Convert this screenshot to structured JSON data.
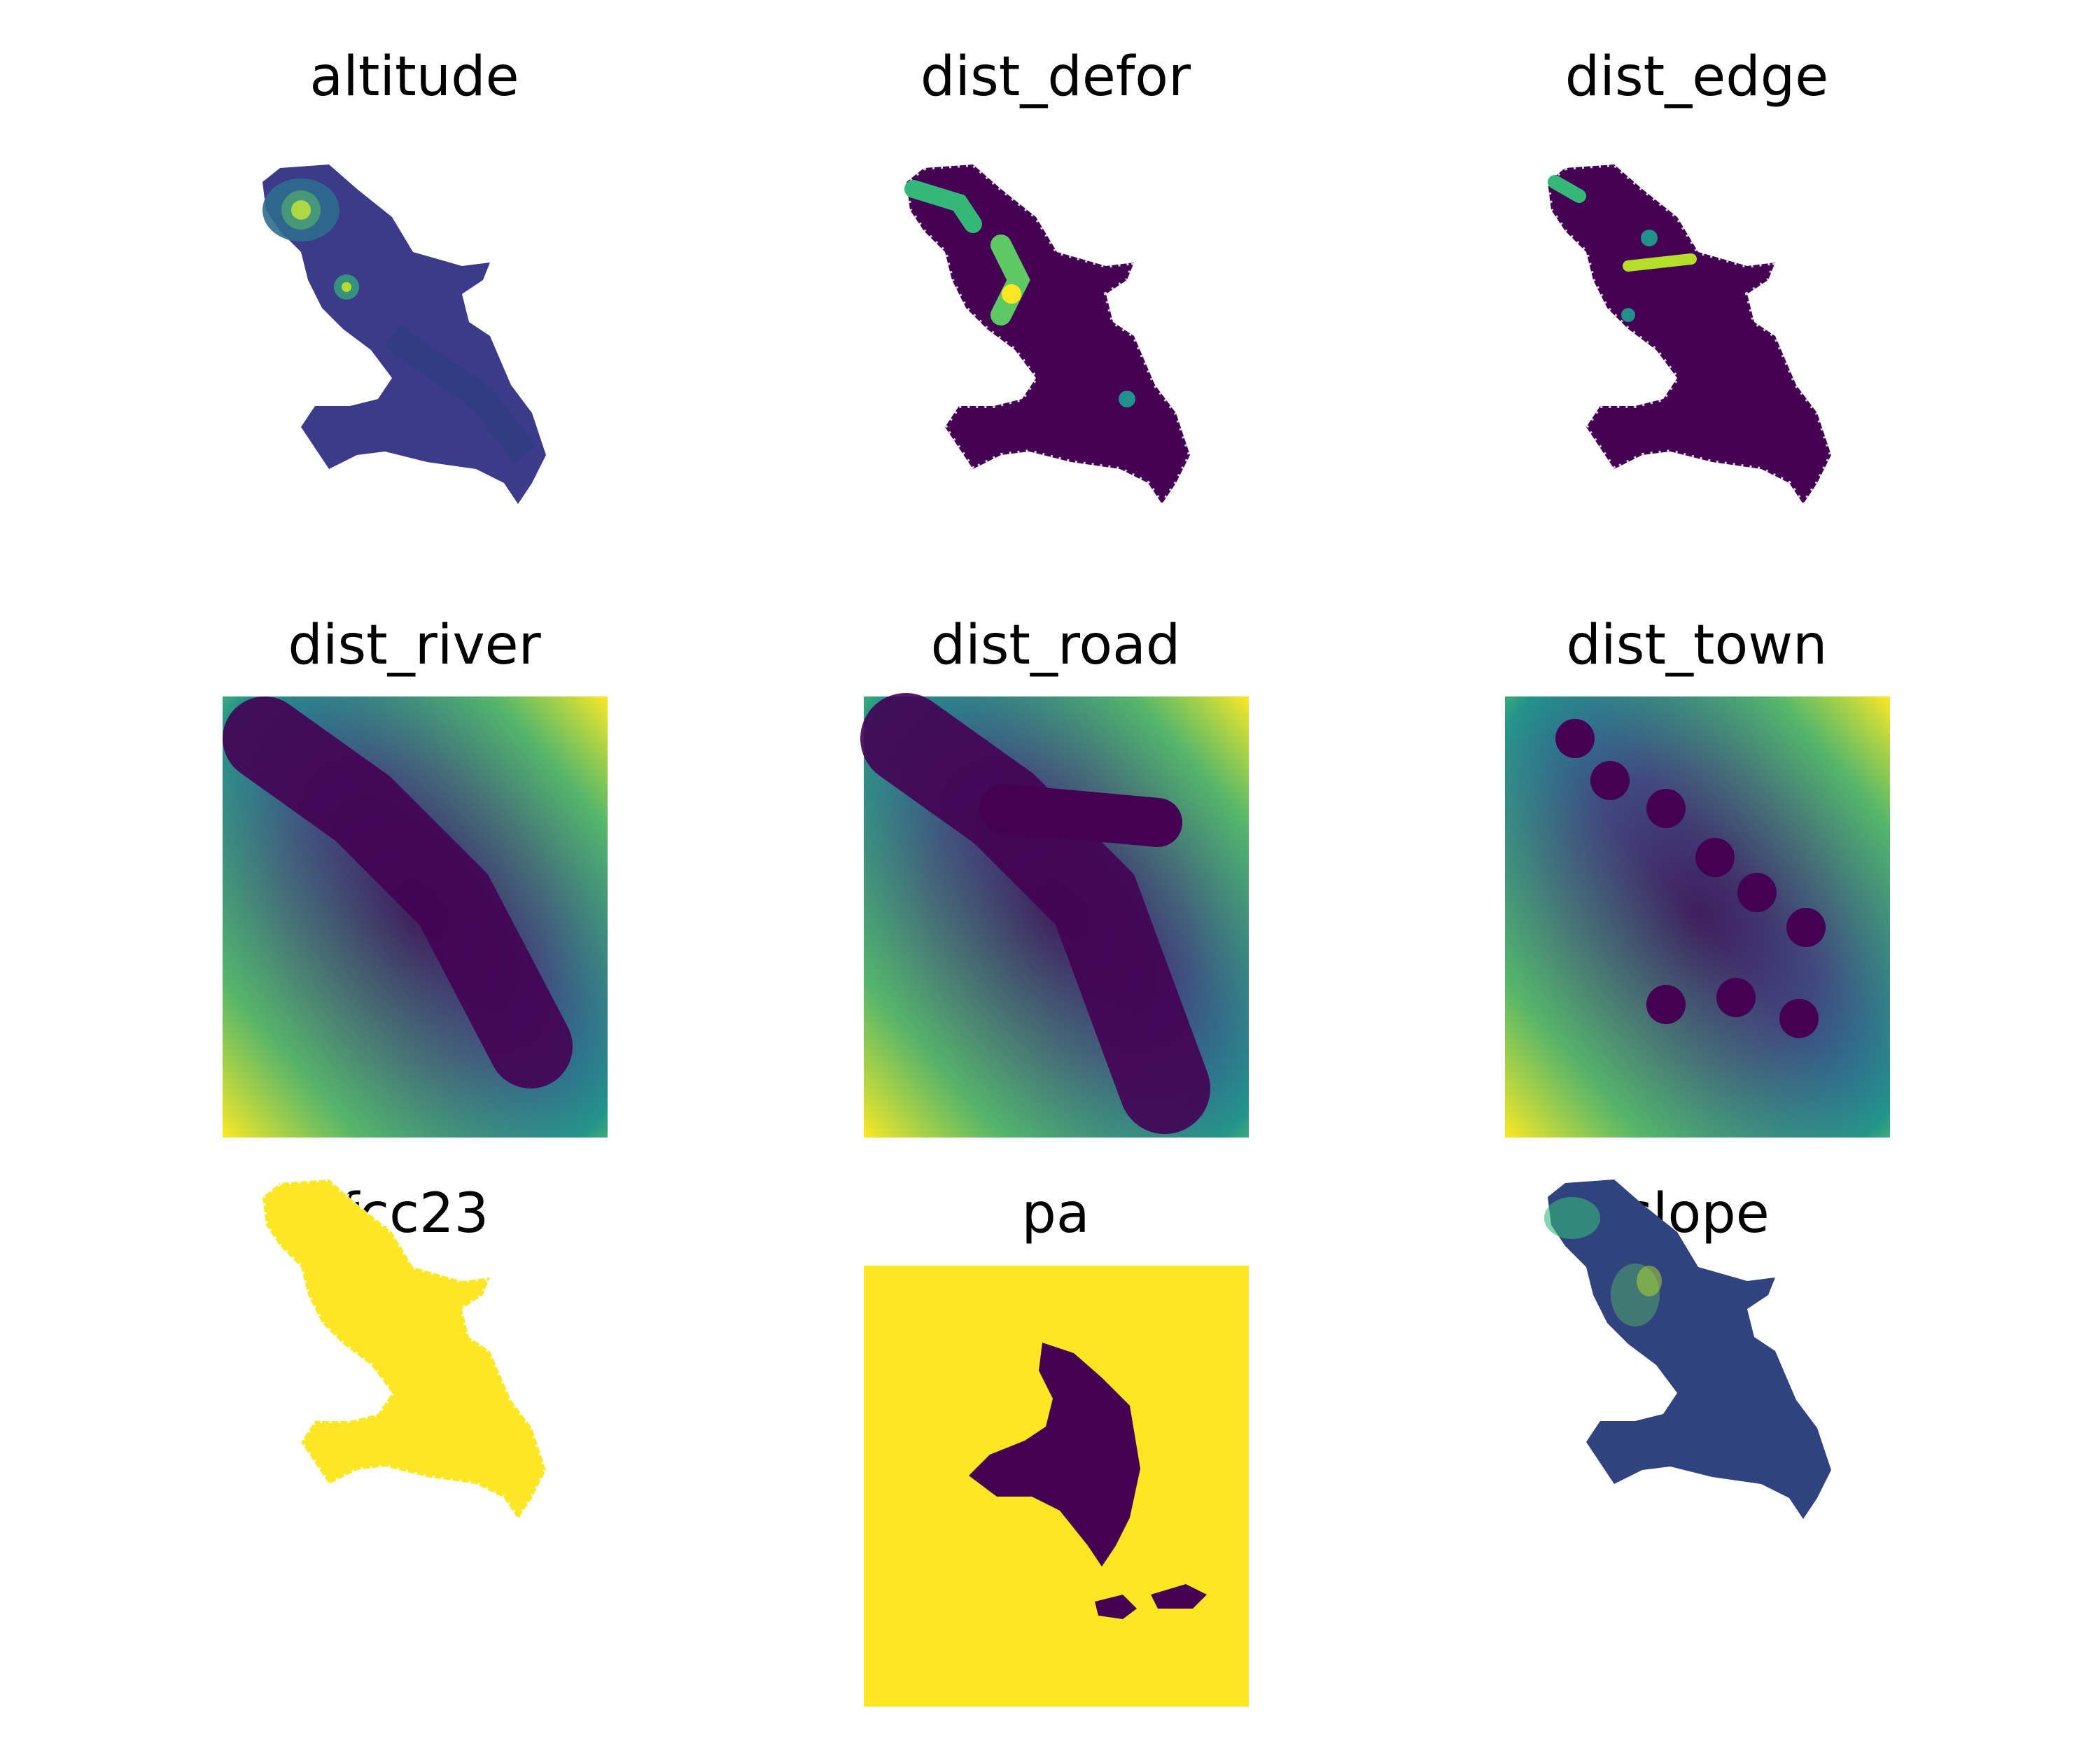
{
  "figure": {
    "panels": [
      {
        "title": "altitude",
        "kind": "island"
      },
      {
        "title": "dist_defor",
        "kind": "forest"
      },
      {
        "title": "dist_edge",
        "kind": "forest"
      },
      {
        "title": "dist_river",
        "kind": "distance"
      },
      {
        "title": "dist_road",
        "kind": "distance"
      },
      {
        "title": "dist_town",
        "kind": "distance"
      },
      {
        "title": "fcc23",
        "kind": "forest"
      },
      {
        "title": "pa",
        "kind": "mask"
      },
      {
        "title": "slope",
        "kind": "island"
      }
    ]
  },
  "chart_data": {
    "type": "heatmap",
    "layout": "3x3 grid of raster maps",
    "colormap": "viridis",
    "axes_visible": false,
    "colors": {
      "low": "#440154",
      "mid_low": "#31688e",
      "mid": "#21918c",
      "mid_high": "#35b779",
      "high": "#fde725",
      "background": "#ffffff"
    }
  }
}
